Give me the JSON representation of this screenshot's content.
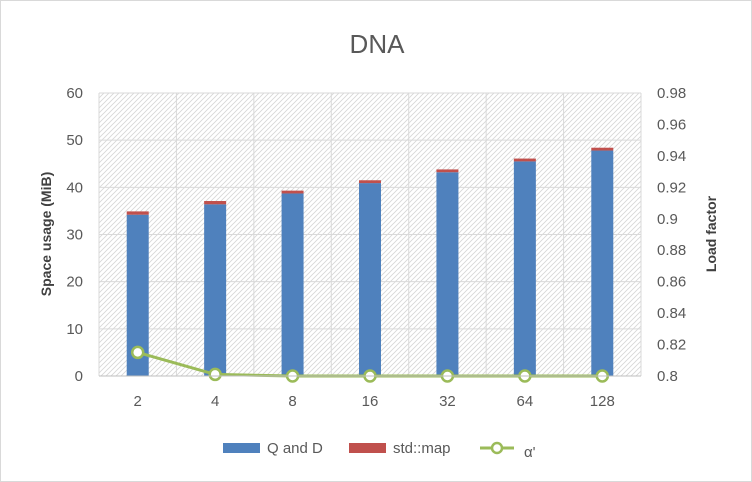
{
  "chart_data": {
    "type": "bar",
    "title": "DNA",
    "categories": [
      "2",
      "4",
      "8",
      "16",
      "32",
      "64",
      "128"
    ],
    "series": [
      {
        "name": "Q and D",
        "type": "stacked-bar",
        "axis": "left",
        "color": "#4f81bd",
        "values": [
          34.2,
          36.4,
          38.7,
          40.9,
          43.2,
          45.5,
          47.8
        ]
      },
      {
        "name": "std::map",
        "type": "stacked-bar",
        "axis": "left",
        "color": "#c0504d",
        "values": [
          0.7,
          0.7,
          0.6,
          0.6,
          0.6,
          0.6,
          0.6
        ]
      },
      {
        "name": "α'",
        "type": "line",
        "axis": "right",
        "color": "#9bbb59",
        "values": [
          0.815,
          0.801,
          0.8,
          0.8,
          0.8,
          0.8,
          0.8
        ]
      }
    ],
    "ylabel": "Space usage (MiB)",
    "ylim": [
      0,
      60
    ],
    "yticks": [
      "0",
      "10",
      "20",
      "30",
      "40",
      "50",
      "60"
    ],
    "y2label": "Load factor",
    "y2lim": [
      0.8,
      0.98
    ],
    "y2ticks": [
      "0.8",
      "0.82",
      "0.84",
      "0.86",
      "0.88",
      "0.9",
      "0.92",
      "0.94",
      "0.96",
      "0.98"
    ],
    "grid": true,
    "legend": "bottom"
  }
}
